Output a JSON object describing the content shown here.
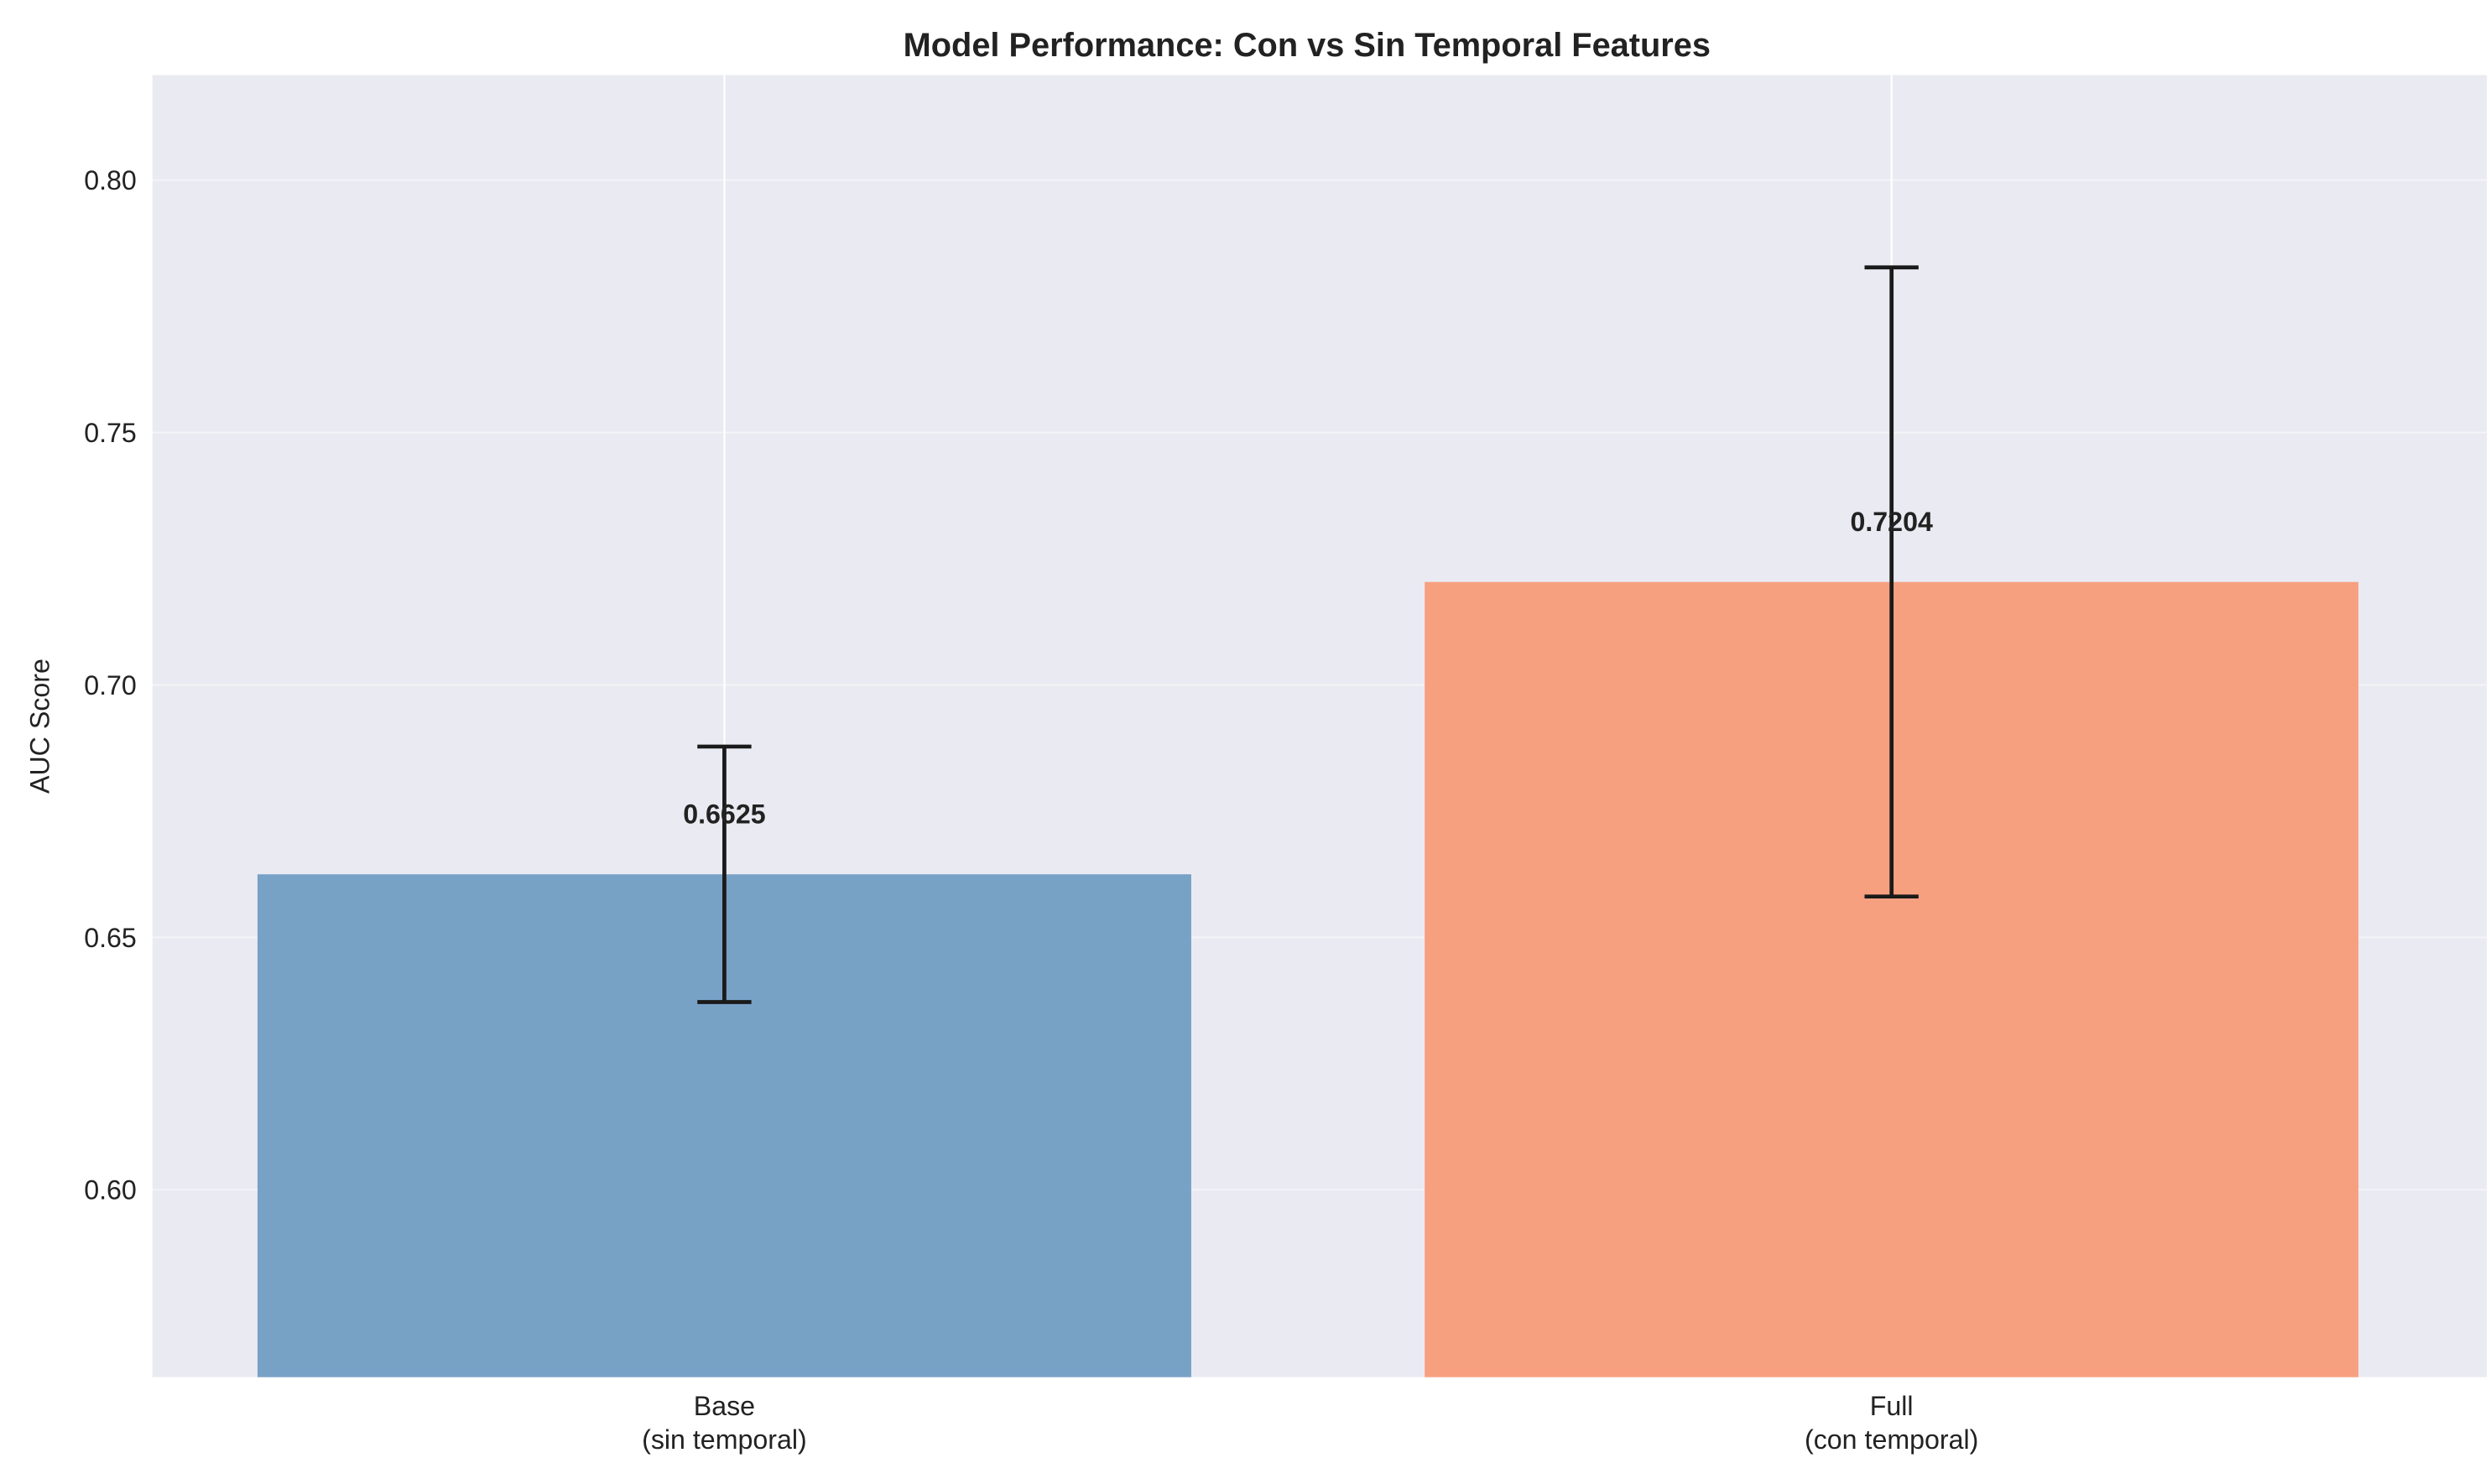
{
  "chart_data": {
    "type": "bar",
    "title": "Model Performance: Con vs Sin Temporal Features",
    "xlabel": "",
    "ylabel": "AUC Score",
    "categories": [
      "Base\n(sin temporal)",
      "Full\n(con temporal)"
    ],
    "category_lines": [
      [
        "Base",
        "(sin temporal)"
      ],
      [
        "Full",
        "(con temporal)"
      ]
    ],
    "values": [
      0.6625,
      0.7204
    ],
    "value_labels": [
      "0.6625",
      "0.7204"
    ],
    "errors": [
      0.0253,
      0.0623
    ],
    "colors": [
      "#78a1c6",
      "#f7a080"
    ],
    "ylim": [
      0.5629,
      0.8208
    ],
    "xlim": [
      -0.49,
      1.51
    ],
    "yticks": [
      0.6,
      0.65,
      0.7,
      0.75,
      0.8
    ],
    "ytick_labels": [
      "0.60",
      "0.65",
      "0.70",
      "0.75",
      "0.80"
    ],
    "grid": true,
    "background": "#eaeaf2"
  }
}
